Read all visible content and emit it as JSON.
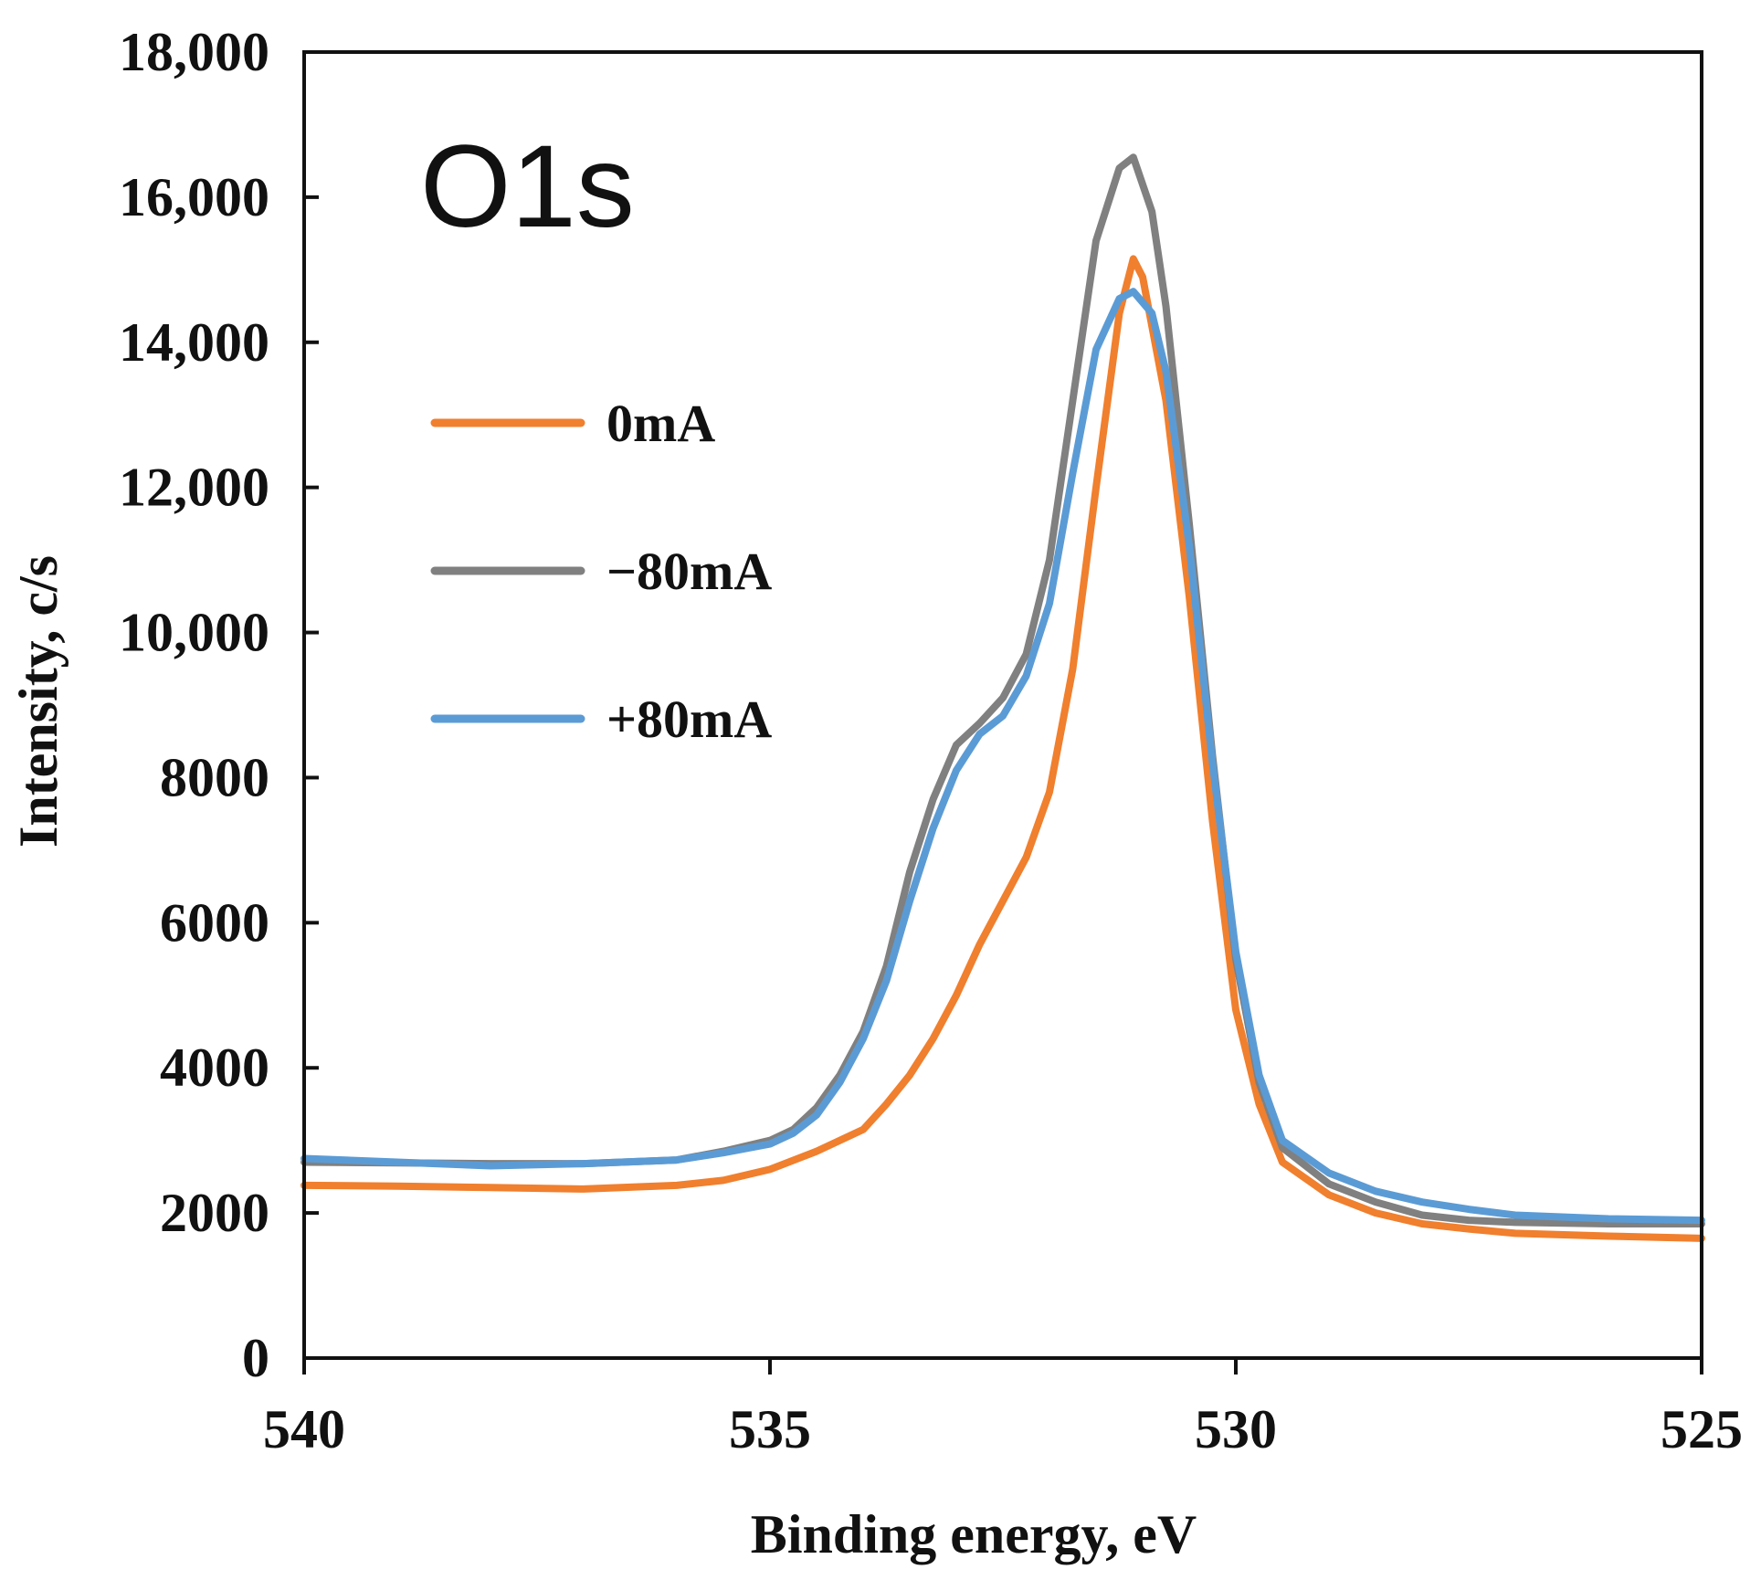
{
  "chart_data": {
    "type": "line",
    "title": "",
    "annotation": "O1s",
    "xlabel": "Binding energy, eV",
    "ylabel": "Intensity, c/s",
    "xlim": [
      540,
      525
    ],
    "ylim": [
      0,
      18000
    ],
    "x_reversed": true,
    "grid": false,
    "legend_position": "upper-left",
    "x_ticks": [
      {
        "value": 540,
        "label": "540"
      },
      {
        "value": 535,
        "label": "535"
      },
      {
        "value": 530,
        "label": "530"
      },
      {
        "value": 525,
        "label": "525"
      }
    ],
    "y_ticks": [
      {
        "value": 0,
        "label": "0"
      },
      {
        "value": 2000,
        "label": "2000"
      },
      {
        "value": 4000,
        "label": "4000"
      },
      {
        "value": 6000,
        "label": "6000"
      },
      {
        "value": 8000,
        "label": "8000"
      },
      {
        "value": 10000,
        "label": "10,000"
      },
      {
        "value": 12000,
        "label": "12,000"
      },
      {
        "value": 14000,
        "label": "14,000"
      },
      {
        "value": 16000,
        "label": "16,000"
      },
      {
        "value": 18000,
        "label": "18,000"
      }
    ],
    "series": [
      {
        "name": "0mA",
        "color": "#F07F2E",
        "points": [
          [
            540.0,
            2380
          ],
          [
            539.0,
            2370
          ],
          [
            538.0,
            2350
          ],
          [
            537.0,
            2330
          ],
          [
            536.0,
            2380
          ],
          [
            535.5,
            2450
          ],
          [
            535.0,
            2600
          ],
          [
            534.5,
            2850
          ],
          [
            534.0,
            3150
          ],
          [
            533.75,
            3500
          ],
          [
            533.5,
            3900
          ],
          [
            533.25,
            4400
          ],
          [
            533.0,
            5000
          ],
          [
            532.75,
            5700
          ],
          [
            532.5,
            6300
          ],
          [
            532.25,
            6900
          ],
          [
            532.0,
            7800
          ],
          [
            531.75,
            9500
          ],
          [
            531.5,
            12000
          ],
          [
            531.25,
            14400
          ],
          [
            531.1,
            15150
          ],
          [
            531.0,
            14900
          ],
          [
            530.75,
            13200
          ],
          [
            530.5,
            10500
          ],
          [
            530.25,
            7400
          ],
          [
            530.0,
            4800
          ],
          [
            529.75,
            3500
          ],
          [
            529.5,
            2700
          ],
          [
            529.0,
            2250
          ],
          [
            528.5,
            2000
          ],
          [
            528.0,
            1850
          ],
          [
            527.5,
            1780
          ],
          [
            527.0,
            1720
          ],
          [
            526.0,
            1680
          ],
          [
            525.0,
            1650
          ]
        ]
      },
      {
        "name": "−80mA",
        "color": "#808080",
        "points": [
          [
            540.0,
            2700
          ],
          [
            539.0,
            2690
          ],
          [
            538.0,
            2680
          ],
          [
            537.0,
            2680
          ],
          [
            536.0,
            2730
          ],
          [
            535.5,
            2850
          ],
          [
            535.0,
            3000
          ],
          [
            534.75,
            3150
          ],
          [
            534.5,
            3450
          ],
          [
            534.25,
            3900
          ],
          [
            534.0,
            4500
          ],
          [
            533.75,
            5400
          ],
          [
            533.5,
            6700
          ],
          [
            533.25,
            7700
          ],
          [
            533.0,
            8450
          ],
          [
            532.75,
            8750
          ],
          [
            532.5,
            9100
          ],
          [
            532.25,
            9700
          ],
          [
            532.0,
            11000
          ],
          [
            531.75,
            13200
          ],
          [
            531.5,
            15400
          ],
          [
            531.25,
            16400
          ],
          [
            531.1,
            16550
          ],
          [
            530.9,
            15800
          ],
          [
            530.75,
            14500
          ],
          [
            530.5,
            11500
          ],
          [
            530.25,
            8300
          ],
          [
            530.0,
            5500
          ],
          [
            529.75,
            3800
          ],
          [
            529.5,
            2900
          ],
          [
            529.0,
            2400
          ],
          [
            528.5,
            2150
          ],
          [
            528.0,
            1970
          ],
          [
            527.5,
            1900
          ],
          [
            527.0,
            1870
          ],
          [
            526.0,
            1850
          ],
          [
            525.0,
            1850
          ]
        ]
      },
      {
        "name": "+80mA",
        "color": "#5B9BD5",
        "points": [
          [
            540.0,
            2750
          ],
          [
            539.0,
            2700
          ],
          [
            538.0,
            2650
          ],
          [
            537.0,
            2680
          ],
          [
            536.0,
            2730
          ],
          [
            535.5,
            2830
          ],
          [
            535.0,
            2950
          ],
          [
            534.75,
            3100
          ],
          [
            534.5,
            3350
          ],
          [
            534.25,
            3800
          ],
          [
            534.0,
            4400
          ],
          [
            533.75,
            5200
          ],
          [
            533.5,
            6300
          ],
          [
            533.25,
            7300
          ],
          [
            533.0,
            8100
          ],
          [
            532.75,
            8600
          ],
          [
            532.5,
            8850
          ],
          [
            532.25,
            9400
          ],
          [
            532.0,
            10400
          ],
          [
            531.75,
            12200
          ],
          [
            531.5,
            13900
          ],
          [
            531.25,
            14600
          ],
          [
            531.1,
            14700
          ],
          [
            530.9,
            14400
          ],
          [
            530.75,
            13600
          ],
          [
            530.5,
            11200
          ],
          [
            530.25,
            8200
          ],
          [
            530.0,
            5600
          ],
          [
            529.75,
            3900
          ],
          [
            529.5,
            3000
          ],
          [
            529.0,
            2550
          ],
          [
            528.5,
            2300
          ],
          [
            528.0,
            2150
          ],
          [
            527.5,
            2050
          ],
          [
            527.0,
            1970
          ],
          [
            526.0,
            1920
          ],
          [
            525.0,
            1900
          ]
        ]
      }
    ]
  }
}
